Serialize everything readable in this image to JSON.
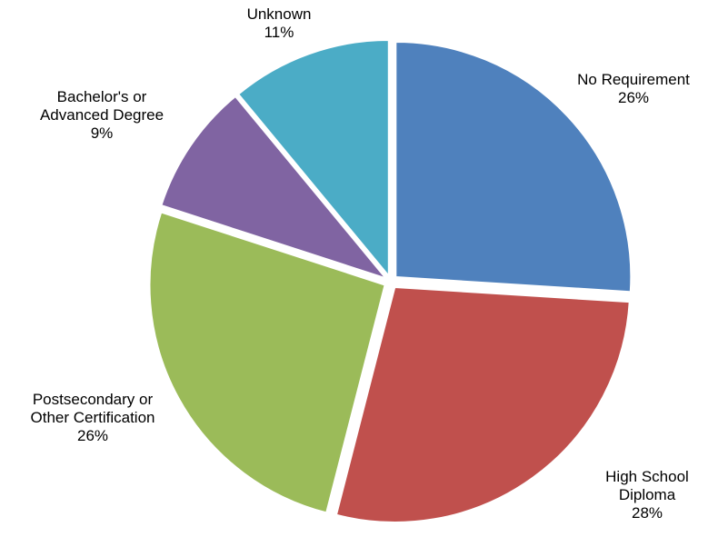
{
  "chart_data": {
    "type": "pie",
    "title": "",
    "slices": [
      {
        "label_lines": [
          "No Requirement"
        ],
        "value": 26,
        "value_label": "26%",
        "color": "#4F81BD"
      },
      {
        "label_lines": [
          "High School",
          "Diploma"
        ],
        "value": 28,
        "value_label": "28%",
        "color": "#C0504D"
      },
      {
        "label_lines": [
          "Postsecondary or",
          "Other Certification"
        ],
        "value": 26,
        "value_label": "26%",
        "color": "#9BBB59"
      },
      {
        "label_lines": [
          "Bachelor's or",
          "Advanced Degree"
        ],
        "value": 9,
        "value_label": "9%",
        "color": "#8064A2"
      },
      {
        "label_lines": [
          "Unknown"
        ],
        "value": 11,
        "value_label": "11%",
        "color": "#4BACC6"
      }
    ],
    "start": "top",
    "direction": "clockwise",
    "exploded": true,
    "legend": "none"
  }
}
